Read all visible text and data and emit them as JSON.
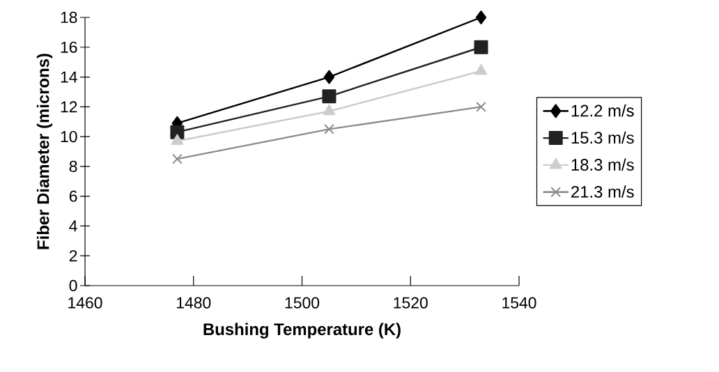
{
  "chart_data": {
    "type": "line",
    "xlabel": "Bushing Temperature (K)",
    "ylabel": "Fiber Diameter (microns)",
    "x": [
      1477,
      1505,
      1533
    ],
    "series": [
      {
        "name": "12.2 m/s",
        "color": "#000000",
        "marker": "diamond",
        "values": [
          10.9,
          14.0,
          18.0
        ]
      },
      {
        "name": "15.3 m/s",
        "color": "#222222",
        "marker": "square",
        "values": [
          10.3,
          12.7,
          16.0
        ]
      },
      {
        "name": "18.3 m/s",
        "color": "#cccccc",
        "marker": "triangle",
        "values": [
          9.7,
          11.7,
          14.4
        ]
      },
      {
        "name": "21.3 m/s",
        "color": "#8c8c8c",
        "marker": "cross",
        "values": [
          8.5,
          10.5,
          12.0
        ]
      }
    ],
    "xlim": [
      1460,
      1540
    ],
    "xticks": [
      1460,
      1480,
      1500,
      1520,
      1540
    ],
    "ylim": [
      0,
      18
    ],
    "yticks": [
      0,
      2,
      4,
      6,
      8,
      10,
      12,
      14,
      16,
      18
    ],
    "grid": false,
    "legend": "right",
    "line_style": "solid"
  }
}
